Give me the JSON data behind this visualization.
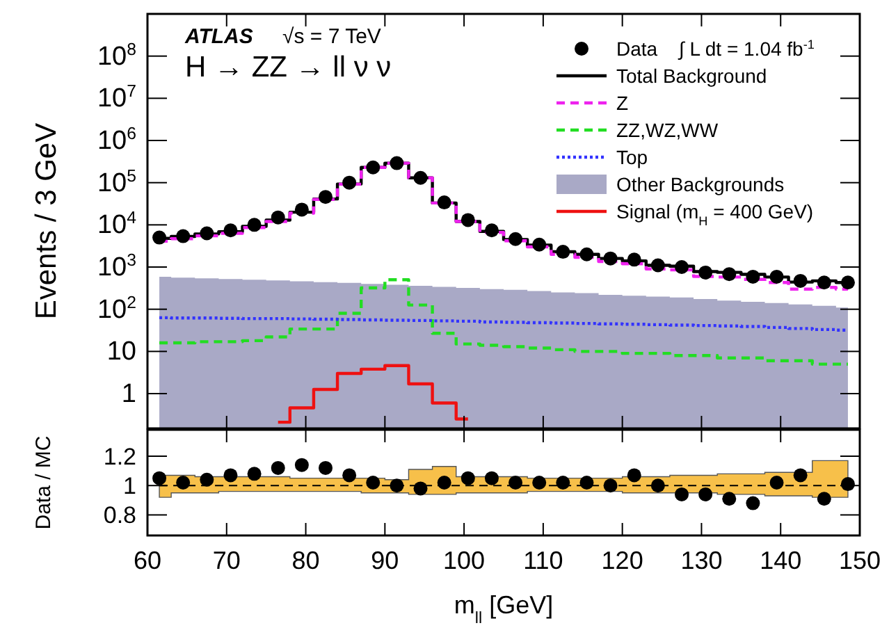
{
  "chart_data": [
    {
      "type": "step",
      "ylabel": "Events / 3 GeV",
      "log": true,
      "legend": "top right",
      "tick_labels": "y",
      "grid": false,
      "annotations": [
        "ATLAS",
        "√s = 7 TeV",
        "H → ZZ → ll ν ν",
        "∫ L dt = 1.04 fb$^{-1}$"
      ],
      "xlim": [
        60,
        150
      ],
      "xticks": [
        60,
        70,
        80,
        90,
        100,
        110,
        120,
        130,
        140,
        150
      ],
      "ylim": [
        0.15,
        1000000000
      ],
      "yticks": [
        1,
        10,
        {
          "value": 100,
          "label": "10$^{2}$"
        },
        {
          "value": 1000,
          "label": "10$^{3}$"
        },
        {
          "value": 10000,
          "label": "10$^{4}$"
        },
        {
          "value": 100000,
          "label": "10$^{5}$"
        },
        {
          "value": 1000000,
          "label": "10$^{6}$"
        },
        {
          "value": 10000000,
          "label": "10$^{7}$"
        },
        {
          "value": 100000000,
          "label": "10$^{8}$"
        }
      ],
      "x": [
        61.5,
        64.5,
        67.5,
        70.5,
        73.5,
        76.5,
        79.5,
        82.5,
        85.5,
        88.5,
        91.5,
        94.5,
        97.5,
        100.5,
        103.5,
        106.5,
        109.5,
        112.5,
        115.5,
        118.5,
        121.5,
        124.5,
        127.5,
        130.5,
        133.5,
        136.5,
        139.5,
        142.5,
        145.5,
        148.5
      ],
      "series": [
        {
          "name": "Data",
          "type": "scatter",
          "color": "#000000",
          "marker": "circle",
          "values": [
            5000,
            5400,
            6300,
            7400,
            10000,
            15000,
            23000,
            46000,
            100000,
            230000,
            290000,
            130000,
            34000,
            13000,
            7400,
            4600,
            3400,
            2300,
            2000,
            1600,
            1500,
            1100,
            1000,
            740,
            680,
            590,
            590,
            470,
            430,
            430
          ]
        },
        {
          "name": "Total Background",
          "color": "#000000",
          "line_style": "solid",
          "values": [
            4800,
            5300,
            6100,
            6900,
            9200,
            13000,
            20000,
            41000,
            93000,
            230000,
            290000,
            130000,
            33000,
            12000,
            7000,
            4500,
            3300,
            2300,
            2000,
            1600,
            1400,
            1100,
            1050,
            780,
            750,
            670,
            580,
            440,
            470,
            430
          ]
        },
        {
          "name": "Z",
          "color": "#ee22ee",
          "line_style": "dashed",
          "values": [
            4100,
            4700,
            5500,
            6300,
            8600,
            12000,
            19000,
            40000,
            92000,
            230000,
            290000,
            130000,
            33000,
            12000,
            6600,
            4200,
            3000,
            2000,
            1700,
            1350,
            1200,
            900,
            860,
            600,
            580,
            510,
            430,
            300,
            330,
            300
          ]
        },
        {
          "name": "ZZ,WZ,WW",
          "color": "#22dd22",
          "line_style": "dashed",
          "values": [
            16,
            16,
            17,
            17,
            18,
            22,
            34,
            34,
            80,
            320,
            500,
            126,
            27,
            15,
            14,
            13,
            12,
            11,
            10,
            10,
            9,
            9,
            8,
            8,
            7,
            7,
            6,
            6,
            5,
            5
          ]
        },
        {
          "name": "Top",
          "color": "#3333ff",
          "line_style": "dotted",
          "values": [
            63,
            62,
            62,
            61,
            60,
            60,
            59,
            58,
            57,
            56,
            55,
            54,
            53,
            52,
            50,
            49,
            48,
            47,
            46,
            45,
            44,
            43,
            42,
            41,
            40,
            39,
            37,
            35,
            33,
            32
          ]
        },
        {
          "name": "Other Backgrounds",
          "type": "area",
          "color": "#a9a9c6",
          "values": [
            590,
            560,
            540,
            520,
            500,
            480,
            460,
            440,
            420,
            400,
            380,
            360,
            340,
            320,
            300,
            290,
            270,
            250,
            240,
            220,
            210,
            200,
            190,
            175,
            160,
            150,
            140,
            130,
            120,
            110
          ]
        },
        {
          "name": "Signal (m$_{H}$ = 400 GeV)",
          "color": "#ee1111",
          "line_style": "solid",
          "values": [
            null,
            null,
            null,
            null,
            null,
            0.21,
            0.46,
            1.26,
            3.0,
            3.8,
            4.6,
            1.7,
            0.6,
            0.25,
            null,
            null,
            null,
            null,
            null,
            null,
            null,
            null,
            null,
            null,
            null,
            null,
            null,
            null,
            null,
            null
          ]
        }
      ]
    },
    {
      "type": "scatter",
      "ylabel": "Data / MC",
      "xlabel": "m$_{ll}$ [GeV]",
      "grid": false,
      "xlim": [
        60,
        150
      ],
      "xticks": [
        60,
        70,
        80,
        90,
        100,
        110,
        120,
        130,
        140,
        150
      ],
      "ylim": [
        0.66,
        1.38
      ],
      "yticks": [
        0.8,
        1,
        1.2
      ],
      "x": [
        61.5,
        64.5,
        67.5,
        70.5,
        73.5,
        76.5,
        79.5,
        82.5,
        85.5,
        88.5,
        91.5,
        94.5,
        97.5,
        100.5,
        103.5,
        106.5,
        109.5,
        112.5,
        115.5,
        118.5,
        121.5,
        124.5,
        127.5,
        130.5,
        133.5,
        136.5,
        139.5,
        142.5,
        145.5,
        148.5
      ],
      "series": [
        {
          "type": "step",
          "color": "#000000",
          "line_style": "dashed",
          "values": [
            1,
            1,
            1,
            1,
            1,
            1,
            1,
            1,
            1,
            1,
            1,
            1,
            1,
            1,
            1,
            1,
            1,
            1,
            1,
            1,
            1,
            1,
            1,
            1,
            1,
            1,
            1,
            1,
            1,
            1
          ],
          "lower": [
            0.92,
            0.95,
            0.95,
            0.96,
            0.96,
            0.96,
            0.96,
            0.96,
            0.96,
            0.95,
            0.95,
            0.94,
            0.94,
            0.95,
            0.95,
            0.95,
            0.96,
            0.96,
            0.96,
            0.96,
            0.95,
            0.95,
            0.95,
            0.95,
            0.94,
            0.94,
            0.93,
            0.93,
            0.92,
            0.92
          ],
          "upper": [
            1.07,
            1.07,
            1.06,
            1.06,
            1.06,
            1.06,
            1.05,
            1.05,
            1.05,
            1.05,
            1.04,
            1.11,
            1.13,
            1.06,
            1.06,
            1.06,
            1.05,
            1.05,
            1.05,
            1.05,
            1.06,
            1.06,
            1.07,
            1.07,
            1.08,
            1.08,
            1.09,
            1.09,
            1.17,
            1.17
          ]
        },
        {
          "color": "#000000",
          "marker": "circle",
          "values": [
            1.05,
            1.02,
            1.04,
            1.07,
            1.08,
            1.12,
            1.14,
            1.12,
            1.07,
            1.02,
            1.0,
            0.98,
            1.02,
            1.05,
            1.05,
            1.02,
            1.02,
            1.02,
            1.02,
            1.0,
            1.07,
            1.0,
            0.94,
            0.94,
            0.91,
            0.88,
            1.02,
            1.07,
            0.91,
            1.01
          ]
        }
      ]
    }
  ]
}
